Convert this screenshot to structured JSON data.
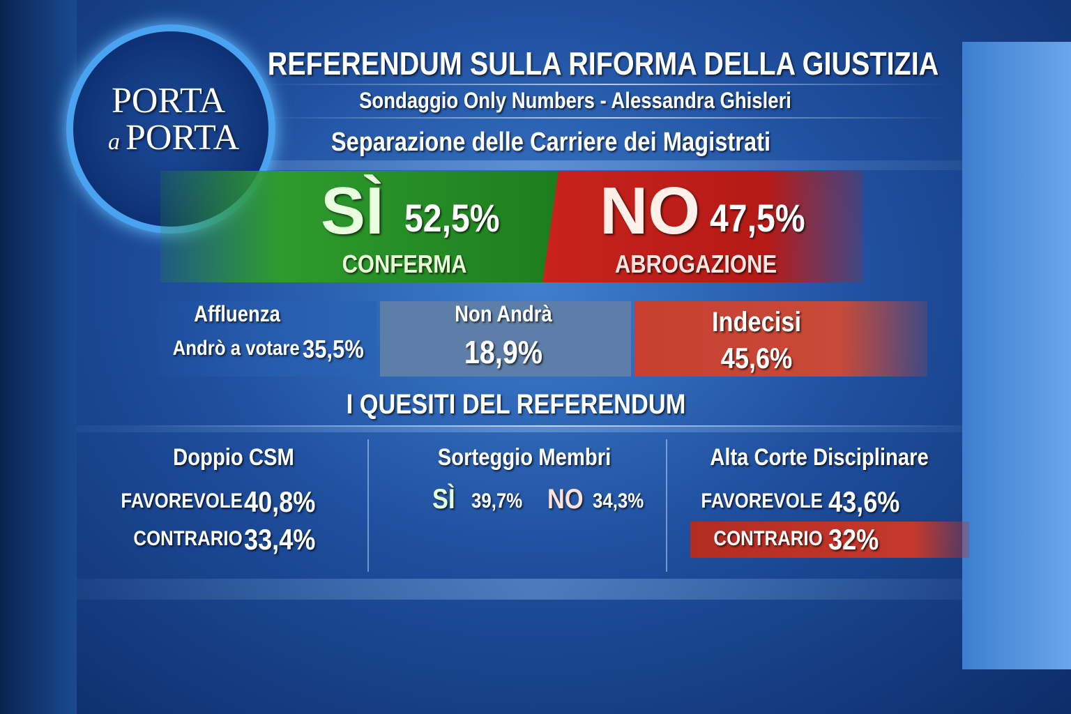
{
  "logo": {
    "line1": "PORTA",
    "line2a": "a",
    "line2b": "PORTA"
  },
  "header": {
    "title": "REFERENDUM SULLA RIFORMA DELLA GIUSTIZIA",
    "subtitle": "Sondaggio Only Numbers - Alessandra Ghisleri",
    "topic": "Separazione delle Carriere dei Magistrati"
  },
  "result": {
    "yes": {
      "label": "SÌ",
      "value": "52,5%",
      "caption": "CONFERMA"
    },
    "no": {
      "label": "NO",
      "value": "47,5%",
      "caption": "ABROGAZIONE"
    }
  },
  "turnout": {
    "affluenza": {
      "title": "Affluenza",
      "label": "Andrò a votare",
      "value": "35,5%"
    },
    "non_andra": {
      "title": "Non Andrà",
      "value": "18,9%"
    },
    "indecisi": {
      "title": "Indecisi",
      "value": "45,6%"
    }
  },
  "questions": {
    "title": "I QUESITI DEL REFERENDUM",
    "items": [
      {
        "title": "Doppio CSM",
        "rows": [
          {
            "label": "FAVOREVOLE",
            "value": "40,8%"
          },
          {
            "label": "CONTRARIO",
            "value": "33,4%"
          }
        ]
      },
      {
        "title": "Sorteggio Membri",
        "rows": [
          {
            "label": "SÌ",
            "value": "39,7%"
          },
          {
            "label": "NO",
            "value": "34,3%"
          }
        ]
      },
      {
        "title": "Alta Corte Disciplinare",
        "rows": [
          {
            "label": "FAVOREVOLE",
            "value": "43,6%"
          },
          {
            "label": "CONTRARIO",
            "value": "32%"
          }
        ]
      }
    ]
  }
}
